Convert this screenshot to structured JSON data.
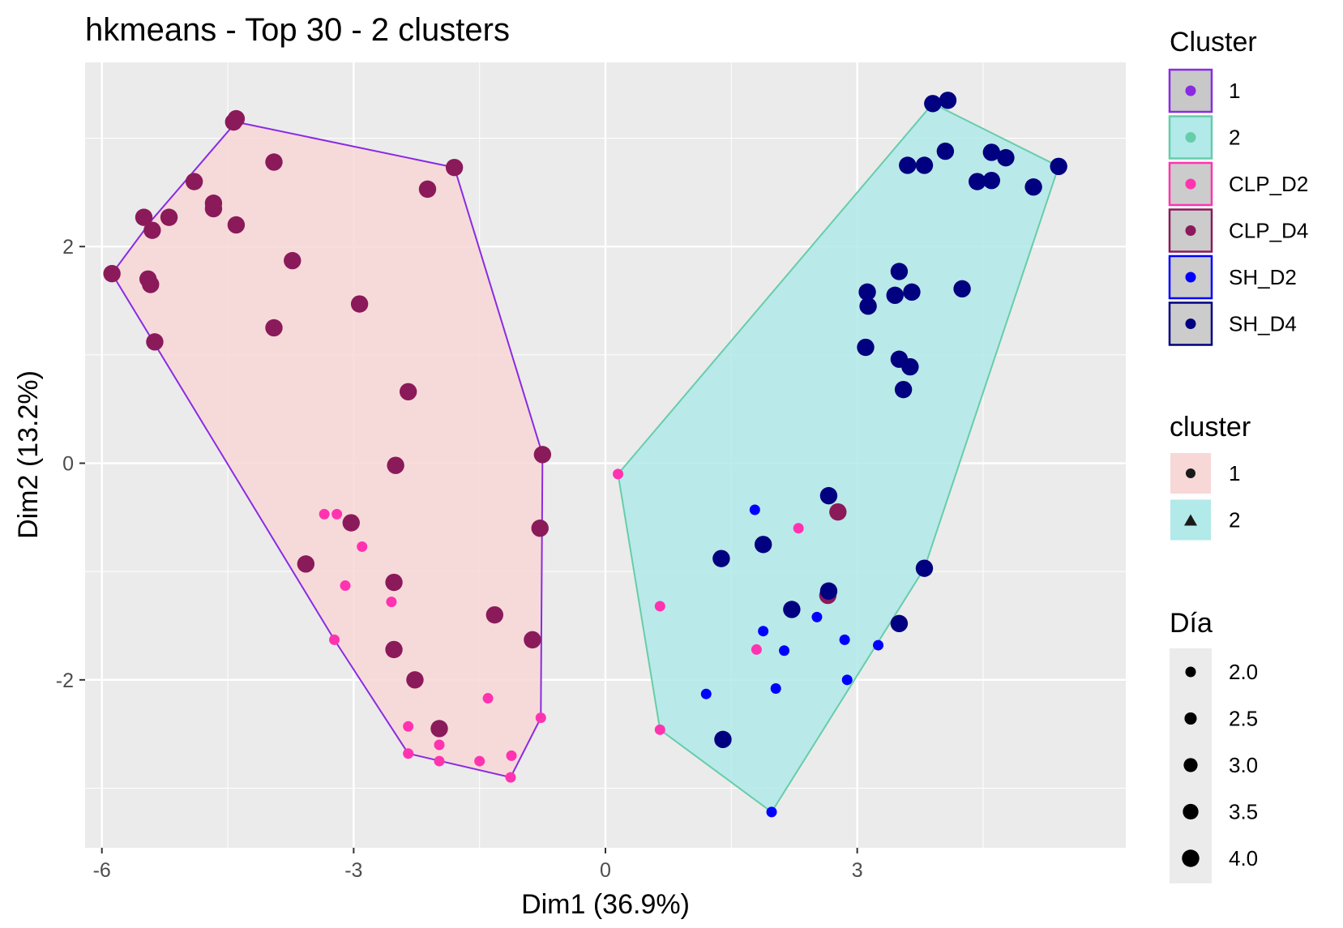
{
  "chart_data": {
    "type": "scatter",
    "title": "hkmeans - Top 30 - 2 clusters",
    "xlabel": "Dim1 (36.9%)",
    "ylabel": "Dim2 (13.2%)",
    "xlim": [
      -6.2,
      6.2
    ],
    "ylim": [
      -3.55,
      3.7
    ],
    "x_ticks": [
      -6,
      -3,
      0,
      3
    ],
    "x_tick_labels": [
      "-6",
      "-3",
      "0",
      "3"
    ],
    "y_ticks": [
      2,
      0,
      -2
    ],
    "y_tick_labels": [
      "2",
      "0",
      "-2"
    ],
    "grid": true,
    "legend_position": "right",
    "colors": {
      "panel_bg": "#ebebeb",
      "grid": "#ffffff",
      "cluster1_hull": "#8a2be2",
      "cluster1_fill": "#f8d7d7",
      "cluster2_hull": "#66cdaa",
      "cluster2_fill": "#b2e9e9",
      "CLP_D2": "#ff33b0",
      "CLP_D4": "#8b1a5a",
      "SH_D2": "#0000ff",
      "SH_D4": "#000080"
    },
    "hulls": [
      {
        "cluster": "1",
        "points": [
          [
            -4.4,
            3.15
          ],
          [
            -1.8,
            2.73
          ],
          [
            -0.75,
            0.08
          ],
          [
            -0.77,
            -2.35
          ],
          [
            -1.13,
            -2.9
          ],
          [
            -2.35,
            -2.68
          ],
          [
            -3.23,
            -1.63
          ],
          [
            -5.88,
            1.75
          ],
          [
            -5.4,
            2.25
          ]
        ]
      },
      {
        "cluster": "2",
        "points": [
          [
            3.9,
            3.32
          ],
          [
            5.4,
            2.74
          ],
          [
            3.8,
            -0.97
          ],
          [
            1.98,
            -3.22
          ],
          [
            0.65,
            -2.46
          ],
          [
            0.15,
            -0.1
          ]
        ]
      }
    ],
    "series": [
      {
        "name": "CLP_D4",
        "dia": 4,
        "points": [
          [
            -4.4,
            3.18
          ],
          [
            -4.43,
            3.15
          ],
          [
            -3.95,
            2.78
          ],
          [
            -1.8,
            2.73
          ],
          [
            -4.9,
            2.6
          ],
          [
            -2.12,
            2.53
          ],
          [
            -4.67,
            2.4
          ],
          [
            -4.67,
            2.35
          ],
          [
            -5.5,
            2.27
          ],
          [
            -5.2,
            2.27
          ],
          [
            -5.4,
            2.15
          ],
          [
            -4.4,
            2.2
          ],
          [
            -3.73,
            1.87
          ],
          [
            -5.88,
            1.75
          ],
          [
            -5.45,
            1.7
          ],
          [
            -5.42,
            1.65
          ],
          [
            -2.93,
            1.47
          ],
          [
            -3.95,
            1.25
          ],
          [
            -5.37,
            1.12
          ],
          [
            -2.35,
            0.66
          ],
          [
            -2.5,
            -0.02
          ],
          [
            -0.75,
            0.08
          ],
          [
            -0.78,
            -0.6
          ],
          [
            -3.03,
            -0.55
          ],
          [
            -3.57,
            -0.93
          ],
          [
            -2.52,
            -1.1
          ],
          [
            -1.32,
            -1.4
          ],
          [
            -0.87,
            -1.63
          ],
          [
            -2.52,
            -1.72
          ],
          [
            -2.27,
            -2.0
          ],
          [
            -1.98,
            -2.45
          ],
          [
            2.77,
            -0.45
          ],
          [
            2.65,
            -1.22
          ]
        ]
      },
      {
        "name": "SH_D4",
        "dia": 4,
        "points": [
          [
            3.9,
            3.32
          ],
          [
            4.08,
            3.35
          ],
          [
            4.05,
            2.88
          ],
          [
            3.6,
            2.75
          ],
          [
            3.8,
            2.75
          ],
          [
            4.6,
            2.87
          ],
          [
            4.77,
            2.82
          ],
          [
            4.43,
            2.6
          ],
          [
            4.6,
            2.61
          ],
          [
            5.4,
            2.74
          ],
          [
            5.1,
            2.55
          ],
          [
            3.5,
            1.77
          ],
          [
            3.12,
            1.58
          ],
          [
            3.45,
            1.55
          ],
          [
            3.65,
            1.58
          ],
          [
            4.25,
            1.61
          ],
          [
            3.13,
            1.45
          ],
          [
            3.1,
            1.07
          ],
          [
            3.5,
            0.96
          ],
          [
            3.63,
            0.89
          ],
          [
            3.55,
            0.68
          ],
          [
            2.66,
            -0.3
          ],
          [
            1.88,
            -0.75
          ],
          [
            1.38,
            -0.88
          ],
          [
            3.8,
            -0.97
          ],
          [
            2.66,
            -1.18
          ],
          [
            2.22,
            -1.35
          ],
          [
            3.5,
            -1.48
          ],
          [
            1.4,
            -2.55
          ]
        ]
      },
      {
        "name": "CLP_D2",
        "dia": 2,
        "points": [
          [
            0.15,
            -0.1
          ],
          [
            -3.35,
            -0.47
          ],
          [
            -3.2,
            -0.47
          ],
          [
            -2.9,
            -0.77
          ],
          [
            -3.1,
            -1.13
          ],
          [
            2.3,
            -0.6
          ],
          [
            -2.55,
            -1.28
          ],
          [
            0.65,
            -1.32
          ],
          [
            -3.23,
            -1.63
          ],
          [
            1.8,
            -1.72
          ],
          [
            -1.4,
            -2.17
          ],
          [
            -0.77,
            -2.35
          ],
          [
            -2.35,
            -2.43
          ],
          [
            0.65,
            -2.46
          ],
          [
            -1.98,
            -2.6
          ],
          [
            -2.35,
            -2.68
          ],
          [
            -1.98,
            -2.75
          ],
          [
            -1.5,
            -2.75
          ],
          [
            -1.12,
            -2.7
          ],
          [
            -1.13,
            -2.9
          ]
        ]
      },
      {
        "name": "SH_D2",
        "dia": 2,
        "points": [
          [
            1.78,
            -0.43
          ],
          [
            2.52,
            -1.42
          ],
          [
            1.88,
            -1.55
          ],
          [
            2.85,
            -1.63
          ],
          [
            2.13,
            -1.73
          ],
          [
            3.25,
            -1.68
          ],
          [
            2.88,
            -2.0
          ],
          [
            1.2,
            -2.13
          ],
          [
            2.03,
            -2.08
          ],
          [
            1.98,
            -3.22
          ]
        ]
      }
    ]
  },
  "legend": {
    "cluster_upper": {
      "title": "Cluster",
      "items": [
        {
          "label": "1",
          "dot": "#8a2be2",
          "fill": "#c8c8c8",
          "border": "#8a2be2"
        },
        {
          "label": "2",
          "dot": "#66cdaa",
          "fill": "#b2e9e9",
          "border": "#66cdaa"
        },
        {
          "label": "CLP_D2",
          "dot": "#ff33b0",
          "fill": "#cccccc",
          "border": "#ff33b0"
        },
        {
          "label": "CLP_D4",
          "dot": "#8b1a5a",
          "fill": "#cccccc",
          "border": "#8b1a5a"
        },
        {
          "label": "SH_D2",
          "dot": "#0000ff",
          "fill": "#cccccc",
          "border": "#0000ff"
        },
        {
          "label": "SH_D4",
          "dot": "#000080",
          "fill": "#cccccc",
          "border": "#000080"
        }
      ]
    },
    "cluster_lower": {
      "title": "cluster",
      "items": [
        {
          "label": "1",
          "shape": "circle",
          "fill": "#f8d7d7"
        },
        {
          "label": "2",
          "shape": "triangle",
          "fill": "#b2e9e9"
        }
      ]
    },
    "dia": {
      "title": "Día",
      "items": [
        {
          "label": "2.0",
          "value": 2.0
        },
        {
          "label": "2.5",
          "value": 2.5
        },
        {
          "label": "3.0",
          "value": 3.0
        },
        {
          "label": "3.5",
          "value": 3.5
        },
        {
          "label": "4.0",
          "value": 4.0
        }
      ]
    }
  }
}
